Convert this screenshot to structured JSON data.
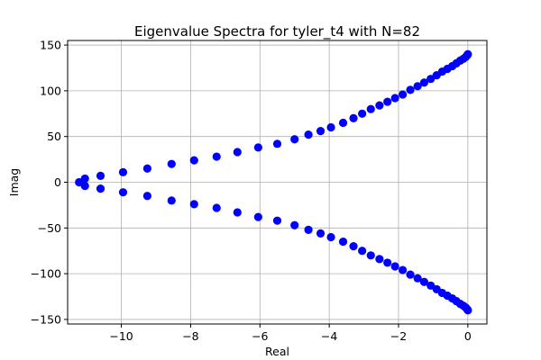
{
  "chart_data": {
    "type": "scatter",
    "title": "Eigenvalue Spectra for tyler_t4 with N=82",
    "xlabel": "Real",
    "ylabel": "Imag",
    "xlim": [
      -11.55,
      0.55
    ],
    "ylim": [
      -155,
      155
    ],
    "xticks": [
      -10,
      -8,
      -6,
      -4,
      -2,
      0
    ],
    "yticks": [
      -150,
      -100,
      -50,
      0,
      50,
      100,
      150
    ],
    "grid": true,
    "marker_color": "#0000ff",
    "series": [
      {
        "name": "",
        "x": [
          -11.22,
          -11.05,
          -10.6,
          -9.95,
          -9.25,
          -8.55,
          -7.9,
          -7.25,
          -6.65,
          -6.05,
          -5.5,
          -5.0,
          -4.6,
          -4.25,
          -3.95,
          -3.6,
          -3.3,
          -3.05,
          -2.8,
          -2.55,
          -2.32,
          -2.1,
          -1.88,
          -1.66,
          -1.45,
          -1.26,
          -1.07,
          -0.9,
          -0.74,
          -0.59,
          -0.45,
          -0.33,
          -0.22,
          -0.13,
          -0.06,
          -0.015,
          0.0,
          -11.05,
          -10.6,
          -9.95,
          -9.25,
          -8.55,
          -7.9,
          -7.25,
          -6.65,
          -6.05,
          -5.5,
          -5.0,
          -4.6,
          -4.25,
          -3.95,
          -3.6,
          -3.3,
          -3.05,
          -2.8,
          -2.55,
          -2.32,
          -2.1,
          -1.88,
          -1.66,
          -1.45,
          -1.26,
          -1.07,
          -0.9,
          -0.74,
          -0.59,
          -0.45,
          -0.33,
          -0.22,
          -0.13,
          -0.06,
          -0.015,
          0.0
        ],
        "y": [
          0,
          4,
          7,
          11,
          15,
          20,
          24,
          28,
          33,
          38,
          42,
          47,
          52,
          56,
          60,
          65,
          70,
          75,
          80,
          84,
          88,
          92,
          96,
          101,
          105,
          109,
          113,
          117,
          121,
          124,
          127,
          130,
          133,
          135,
          137,
          139,
          140,
          -4,
          -7,
          -11,
          -15,
          -20,
          -24,
          -28,
          -33,
          -38,
          -42,
          -47,
          -52,
          -56,
          -60,
          -65,
          -70,
          -75,
          -80,
          -84,
          -88,
          -92,
          -96,
          -101,
          -105,
          -109,
          -113,
          -117,
          -121,
          -124,
          -127,
          -130,
          -133,
          -135,
          -137,
          -139,
          -140
        ]
      }
    ]
  }
}
